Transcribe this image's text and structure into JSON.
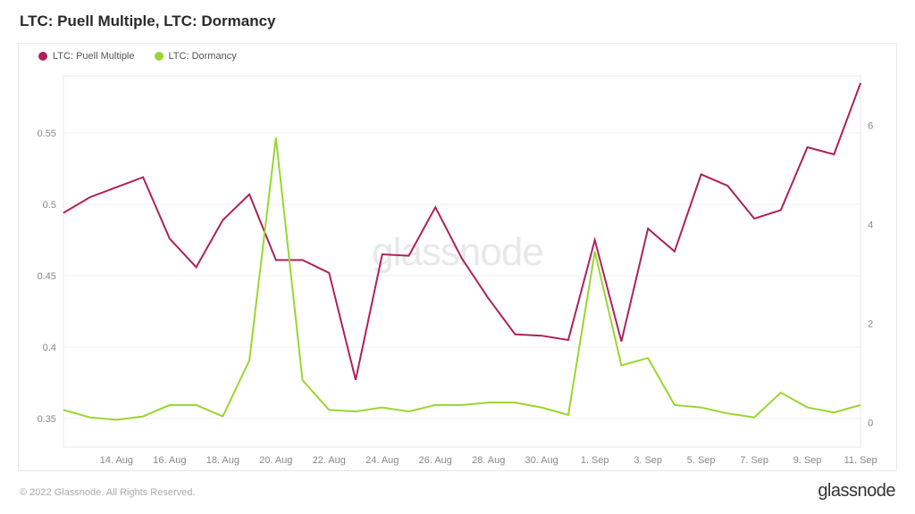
{
  "title": "LTC: Puell Multiple, LTC: Dormancy",
  "watermark": "glassnode",
  "footer_left": "© 2022 Glassnode. All Rights Reserved.",
  "footer_right": "glassnode",
  "chart": {
    "type": "line",
    "background_color": "#ffffff",
    "border_color": "#e8e8e8",
    "grid_color": "#f2f2f2",
    "axis_text_color": "#888888",
    "axis_fontsize": 11,
    "legend": [
      {
        "label": "LTC: Puell Multiple",
        "color": "#b0205b"
      },
      {
        "label": "LTC: Dormancy",
        "color": "#9ad62f"
      }
    ],
    "x": {
      "domain": [
        0,
        30
      ],
      "tick_positions": [
        2,
        4,
        6,
        8,
        10,
        12,
        14,
        16,
        18,
        20,
        22,
        24,
        26,
        28,
        30
      ],
      "tick_labels": [
        "14. Aug",
        "16. Aug",
        "18. Aug",
        "20. Aug",
        "22. Aug",
        "24. Aug",
        "26. Aug",
        "28. Aug",
        "30. Aug",
        "1. Sep",
        "3. Sep",
        "5. Sep",
        "7. Sep",
        "9. Sep",
        "11. Sep"
      ]
    },
    "y_left": {
      "domain": [
        0.33,
        0.59
      ],
      "ticks": [
        0.35,
        0.4,
        0.45,
        0.5,
        0.55
      ],
      "tick_labels": [
        "0.35",
        "0.4",
        "0.45",
        "0.5",
        "0.55"
      ]
    },
    "y_right": {
      "domain": [
        -0.5,
        7
      ],
      "ticks": [
        0,
        2,
        4,
        6
      ],
      "tick_labels": [
        "0",
        "2",
        "4",
        "6"
      ]
    },
    "series": [
      {
        "name": "puell",
        "axis": "left",
        "color": "#b0205b",
        "line_width": 2,
        "points": [
          [
            0,
            0.494
          ],
          [
            1,
            0.505
          ],
          [
            2,
            0.512
          ],
          [
            3,
            0.519
          ],
          [
            4,
            0.476
          ],
          [
            5,
            0.456
          ],
          [
            6,
            0.489
          ],
          [
            7,
            0.507
          ],
          [
            8,
            0.461
          ],
          [
            9,
            0.461
          ],
          [
            10,
            0.452
          ],
          [
            11,
            0.377
          ],
          [
            12,
            0.465
          ],
          [
            13,
            0.464
          ],
          [
            14,
            0.498
          ],
          [
            15,
            0.462
          ],
          [
            16,
            0.434
          ],
          [
            17,
            0.409
          ],
          [
            18,
            0.408
          ],
          [
            19,
            0.405
          ],
          [
            20,
            0.475
          ],
          [
            21,
            0.404
          ],
          [
            22,
            0.483
          ],
          [
            23,
            0.467
          ],
          [
            24,
            0.521
          ],
          [
            25,
            0.513
          ],
          [
            26,
            0.49
          ],
          [
            27,
            0.496
          ],
          [
            28,
            0.54
          ],
          [
            29,
            0.535
          ],
          [
            30,
            0.585
          ]
        ]
      },
      {
        "name": "dormancy",
        "axis": "right",
        "color": "#9ad62f",
        "line_width": 2,
        "points": [
          [
            0,
            0.25
          ],
          [
            1,
            0.1
          ],
          [
            2,
            0.05
          ],
          [
            3,
            0.12
          ],
          [
            4,
            0.35
          ],
          [
            5,
            0.35
          ],
          [
            6,
            0.12
          ],
          [
            7,
            1.25
          ],
          [
            8,
            5.75
          ],
          [
            9,
            0.85
          ],
          [
            10,
            0.25
          ],
          [
            11,
            0.22
          ],
          [
            12,
            0.3
          ],
          [
            13,
            0.22
          ],
          [
            14,
            0.35
          ],
          [
            15,
            0.35
          ],
          [
            16,
            0.4
          ],
          [
            17,
            0.4
          ],
          [
            18,
            0.3
          ],
          [
            19,
            0.15
          ],
          [
            20,
            3.45
          ],
          [
            21,
            1.15
          ],
          [
            22,
            1.3
          ],
          [
            23,
            0.35
          ],
          [
            24,
            0.3
          ],
          [
            25,
            0.18
          ],
          [
            26,
            0.1
          ],
          [
            27,
            0.6
          ],
          [
            28,
            0.3
          ],
          [
            29,
            0.2
          ],
          [
            30,
            0.35
          ]
        ]
      }
    ]
  }
}
